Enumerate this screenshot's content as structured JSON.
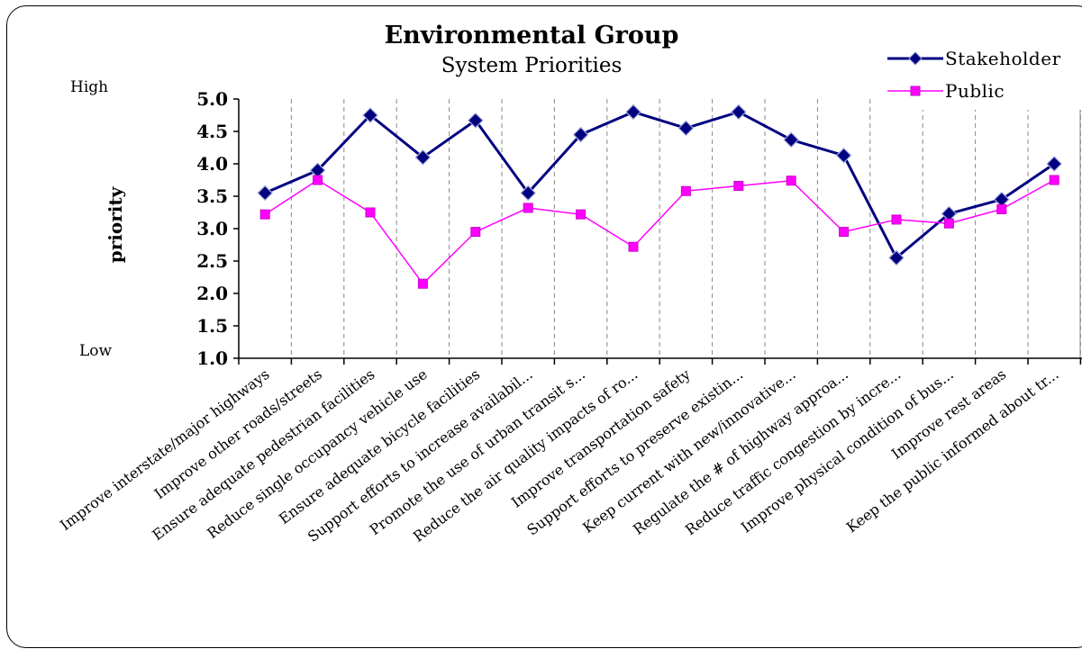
{
  "chart_data": {
    "type": "line",
    "title": "Environmental Group",
    "subtitle": "System Priorities",
    "ylabel": "priority",
    "ylim": [
      1.0,
      5.0
    ],
    "yticks": [
      "1.0",
      "1.5",
      "2.0",
      "2.5",
      "3.0",
      "3.5",
      "4.0",
      "4.5",
      "5.0"
    ],
    "high_label": "High",
    "low_label": "Low",
    "legend_position": "top-right",
    "grid": "vertical dashed",
    "categories": [
      "Improve interstate/major highways",
      "Improve other roads/streets",
      "Ensure adequate pedestrian facilities",
      "Reduce single occupancy vehicle use",
      "Ensure adequate bicycle facilities",
      "Support efforts to increase availabil...",
      "Promote the use of urban transit s...",
      "Reduce the air quality impacts of ro...",
      "Improve transportation safety",
      "Support efforts to preserve existin...",
      "Keep current with new/innovative...",
      "Regulate the # of highway approa...",
      "Reduce traffic congestion by incre...",
      "Improve physical condition of bus...",
      "Improve rest areas",
      "Keep the public informed about tr..."
    ],
    "series": [
      {
        "name": "Stakeholder",
        "color": "#000080",
        "marker": "diamond",
        "values": [
          3.55,
          3.9,
          4.75,
          4.1,
          4.67,
          3.55,
          4.45,
          4.8,
          4.55,
          4.8,
          4.37,
          4.13,
          2.55,
          3.23,
          3.45,
          4.0
        ]
      },
      {
        "name": "Public",
        "color": "#ff00ff",
        "marker": "square",
        "values": [
          3.22,
          3.75,
          3.25,
          2.15,
          2.95,
          3.32,
          3.22,
          2.72,
          3.58,
          3.66,
          3.74,
          2.95,
          3.14,
          3.08,
          3.3,
          3.75
        ]
      }
    ]
  }
}
